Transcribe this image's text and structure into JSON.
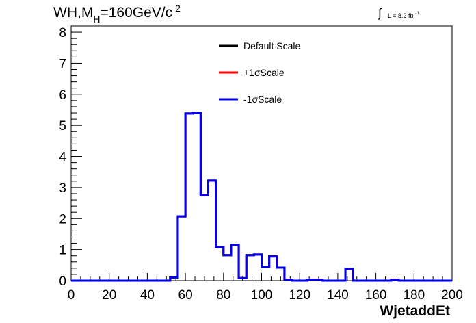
{
  "title": {
    "prefix": "WH,M",
    "subscript": "H",
    "value": "=160GeV/c",
    "superscript": "2"
  },
  "luminosity": {
    "text": "L = 8.2 fb",
    "superscript": "-1"
  },
  "chart_data": {
    "type": "line",
    "xlabel": "WjetaddEt",
    "ylabel": "",
    "xlim": [
      0,
      200
    ],
    "ylim": [
      0,
      8.2
    ],
    "x_ticks": [
      0,
      20,
      40,
      60,
      80,
      100,
      120,
      140,
      160,
      180,
      200
    ],
    "y_ticks": [
      0,
      1,
      2,
      3,
      4,
      5,
      6,
      7,
      8
    ],
    "bin_width": 4,
    "bin_edges_start": 0,
    "grid": false,
    "legend_position": "top-center",
    "series": [
      {
        "name": "Default Scale",
        "color": "#000000",
        "values": [
          0,
          0,
          0,
          0,
          0,
          0,
          0,
          0,
          0,
          0,
          0,
          0,
          0,
          0.1,
          2.07,
          5.38,
          5.4,
          2.75,
          3.22,
          1.08,
          0.82,
          1.15,
          0.08,
          0.82,
          0.84,
          0.44,
          0.78,
          0.42,
          0.03,
          0,
          0,
          0.03,
          0.03,
          0,
          0,
          0,
          0.38,
          0,
          0,
          0,
          0,
          0,
          0.03,
          0,
          0,
          0,
          0,
          0,
          0,
          0
        ]
      },
      {
        "name": "+1σScale",
        "color": "#ff0000",
        "values": [
          0,
          0,
          0,
          0,
          0,
          0,
          0,
          0,
          0,
          0,
          0,
          0,
          0,
          0.1,
          2.07,
          5.38,
          5.4,
          2.75,
          3.22,
          1.08,
          0.82,
          1.15,
          0.08,
          0.82,
          0.84,
          0.44,
          0.78,
          0.42,
          0.03,
          0,
          0,
          0.03,
          0.03,
          0,
          0,
          0,
          0.38,
          0,
          0,
          0,
          0,
          0,
          0.03,
          0,
          0,
          0,
          0,
          0,
          0,
          0
        ]
      },
      {
        "name": "-1σScale",
        "color": "#0000ee",
        "values": [
          0,
          0,
          0,
          0,
          0,
          0,
          0,
          0,
          0,
          0,
          0,
          0,
          0,
          0.1,
          2.07,
          5.38,
          5.4,
          2.75,
          3.22,
          1.08,
          0.82,
          1.15,
          0.08,
          0.82,
          0.84,
          0.44,
          0.78,
          0.42,
          0.03,
          0,
          0,
          0.03,
          0.03,
          0,
          0,
          0,
          0.38,
          0,
          0,
          0,
          0,
          0,
          0.03,
          0,
          0,
          0,
          0,
          0,
          0,
          0
        ]
      }
    ]
  }
}
